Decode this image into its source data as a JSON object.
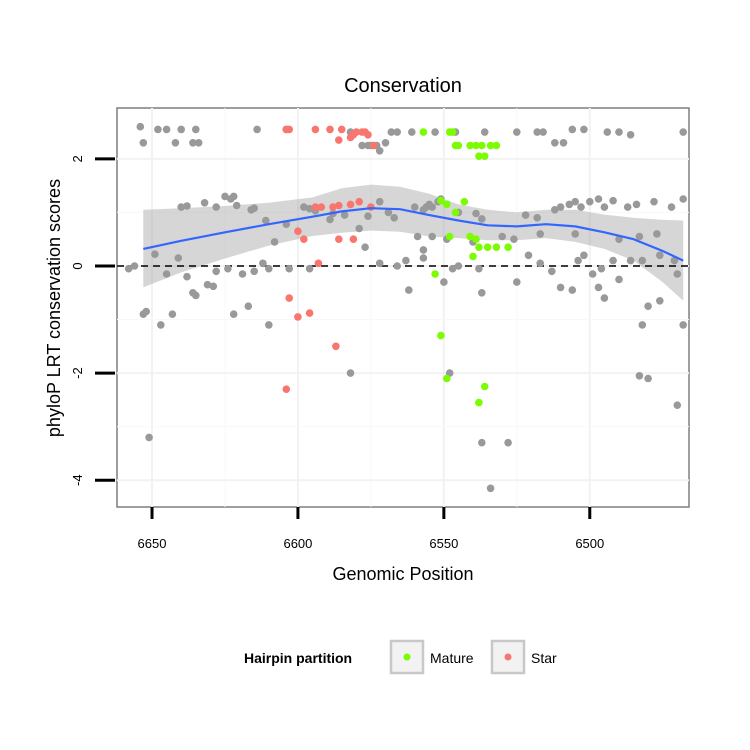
{
  "chart_data": {
    "type": "scatter",
    "title": "Conservation",
    "xlabel": "Genomic Position",
    "ylabel": "phyloP LRT conservation scores",
    "x_reversed": true,
    "xlim": [
      6662,
      6466
    ],
    "ylim": [
      -4.5,
      2.95
    ],
    "x_ticks": [
      6650,
      6600,
      6550,
      6500
    ],
    "y_ticks": [
      -4,
      -2,
      0,
      2
    ],
    "reference_line": {
      "y": 0,
      "style": "dashed"
    },
    "smooth": {
      "method": "loess",
      "color": "#3366FF",
      "x": [
        6653,
        6640,
        6625,
        6610,
        6595,
        6585,
        6575,
        6565,
        6555,
        6545,
        6535,
        6525,
        6515,
        6505,
        6495,
        6485,
        6475,
        6468
      ],
      "y": [
        0.32,
        0.47,
        0.63,
        0.78,
        0.92,
        1.02,
        1.08,
        1.06,
        0.95,
        0.85,
        0.76,
        0.74,
        0.78,
        0.74,
        0.63,
        0.5,
        0.28,
        0.1
      ],
      "upper": [
        1.05,
        1.08,
        1.12,
        1.18,
        1.28,
        1.45,
        1.52,
        1.48,
        1.35,
        1.15,
        1.05,
        1.0,
        1.05,
        1.05,
        0.96,
        0.9,
        0.86,
        0.85
      ],
      "lower": [
        -0.4,
        -0.12,
        0.14,
        0.38,
        0.56,
        0.62,
        0.66,
        0.64,
        0.55,
        0.52,
        0.48,
        0.48,
        0.52,
        0.45,
        0.32,
        0.1,
        -0.3,
        -0.65
      ]
    },
    "legend": {
      "title": "Hairpin partition",
      "position": "bottom",
      "entries": [
        {
          "label": "Mature",
          "color": "#7CFC00"
        },
        {
          "label": "Star",
          "color": "#F8766D"
        }
      ]
    },
    "series": [
      {
        "name": "Other",
        "color": "#999999",
        "points": [
          [
            6654,
            2.6
          ],
          [
            6653,
            2.3
          ],
          [
            6648,
            2.55
          ],
          [
            6645,
            2.55
          ],
          [
            6642,
            2.3
          ],
          [
            6640,
            2.55
          ],
          [
            6636,
            2.3
          ],
          [
            6635,
            2.55
          ],
          [
            6634,
            2.3
          ],
          [
            6614,
            2.55
          ],
          [
            6604,
            2.55
          ],
          [
            6582,
            2.5
          ],
          [
            6578,
            2.25
          ],
          [
            6576,
            2.25
          ],
          [
            6575,
            2.25
          ],
          [
            6573,
            2.25
          ],
          [
            6572,
            2.15
          ],
          [
            6570,
            2.3
          ],
          [
            6568,
            2.5
          ],
          [
            6566,
            2.5
          ],
          [
            6561,
            2.5
          ],
          [
            6553,
            2.5
          ],
          [
            6546,
            2.5
          ],
          [
            6536,
            2.5
          ],
          [
            6525,
            2.5
          ],
          [
            6518,
            2.5
          ],
          [
            6516,
            2.5
          ],
          [
            6512,
            2.3
          ],
          [
            6509,
            2.3
          ],
          [
            6506,
            2.55
          ],
          [
            6502,
            2.55
          ],
          [
            6494,
            2.5
          ],
          [
            6490,
            2.5
          ],
          [
            6486,
            2.45
          ],
          [
            6468,
            2.5
          ],
          [
            6640,
            1.1
          ],
          [
            6638,
            1.12
          ],
          [
            6632,
            1.18
          ],
          [
            6628,
            1.1
          ],
          [
            6625,
            1.3
          ],
          [
            6623,
            1.25
          ],
          [
            6622,
            1.3
          ],
          [
            6621,
            1.13
          ],
          [
            6616,
            1.05
          ],
          [
            6615,
            1.08
          ],
          [
            6598,
            1.1
          ],
          [
            6596,
            1.07
          ],
          [
            6594,
            1.03
          ],
          [
            6588,
            0.98
          ],
          [
            6584,
            0.95
          ],
          [
            6576,
            0.93
          ],
          [
            6572,
            1.2
          ],
          [
            6569,
            1.0
          ],
          [
            6567,
            0.9
          ],
          [
            6560,
            1.1
          ],
          [
            6557,
            1.05
          ],
          [
            6556,
            1.1
          ],
          [
            6555,
            1.15
          ],
          [
            6554,
            1.1
          ],
          [
            6552,
            1.2
          ],
          [
            6551,
            1.25
          ],
          [
            6545,
            1.0
          ],
          [
            6539,
            0.98
          ],
          [
            6537,
            0.88
          ],
          [
            6522,
            0.95
          ],
          [
            6518,
            0.9
          ],
          [
            6512,
            1.05
          ],
          [
            6510,
            1.1
          ],
          [
            6507,
            1.15
          ],
          [
            6505,
            1.2
          ],
          [
            6503,
            1.1
          ],
          [
            6500,
            1.2
          ],
          [
            6497,
            1.25
          ],
          [
            6495,
            1.1
          ],
          [
            6492,
            1.22
          ],
          [
            6487,
            1.1
          ],
          [
            6484,
            1.15
          ],
          [
            6478,
            1.2
          ],
          [
            6472,
            1.1
          ],
          [
            6468,
            1.25
          ],
          [
            6611,
            0.85
          ],
          [
            6604,
            0.78
          ],
          [
            6589,
            0.87
          ],
          [
            6579,
            0.7
          ],
          [
            6559,
            0.55
          ],
          [
            6557,
            0.3
          ],
          [
            6554,
            0.55
          ],
          [
            6549,
            0.5
          ],
          [
            6540,
            0.45
          ],
          [
            6530,
            0.55
          ],
          [
            6526,
            0.5
          ],
          [
            6517,
            0.6
          ],
          [
            6505,
            0.6
          ],
          [
            6490,
            0.5
          ],
          [
            6483,
            0.55
          ],
          [
            6477,
            0.6
          ],
          [
            6658,
            -0.05
          ],
          [
            6656,
            0.0
          ],
          [
            6649,
            0.22
          ],
          [
            6645,
            -0.15
          ],
          [
            6641,
            0.15
          ],
          [
            6638,
            -0.2
          ],
          [
            6636,
            -0.5
          ],
          [
            6635,
            -0.55
          ],
          [
            6631,
            -0.35
          ],
          [
            6629,
            -0.38
          ],
          [
            6628,
            -0.1
          ],
          [
            6624,
            -0.05
          ],
          [
            6622,
            -0.9
          ],
          [
            6619,
            -0.15
          ],
          [
            6615,
            -0.1
          ],
          [
            6612,
            0.05
          ],
          [
            6610,
            -0.05
          ],
          [
            6608,
            0.45
          ],
          [
            6603,
            -0.05
          ],
          [
            6596,
            -0.05
          ],
          [
            6577,
            0.35
          ],
          [
            6572,
            0.05
          ],
          [
            6566,
            0.0
          ],
          [
            6563,
            0.1
          ],
          [
            6562,
            -0.45
          ],
          [
            6557,
            0.15
          ],
          [
            6550,
            -0.3
          ],
          [
            6547,
            -0.05
          ],
          [
            6545,
            0.0
          ],
          [
            6538,
            -0.05
          ],
          [
            6537,
            -0.5
          ],
          [
            6525,
            -0.3
          ],
          [
            6521,
            0.2
          ],
          [
            6517,
            0.05
          ],
          [
            6513,
            -0.1
          ],
          [
            6510,
            -0.4
          ],
          [
            6506,
            -0.45
          ],
          [
            6504,
            0.1
          ],
          [
            6502,
            0.2
          ],
          [
            6499,
            -0.15
          ],
          [
            6496,
            -0.05
          ],
          [
            6492,
            0.1
          ],
          [
            6490,
            -0.25
          ],
          [
            6486,
            0.1
          ],
          [
            6482,
            0.1
          ],
          [
            6476,
            0.2
          ],
          [
            6471,
            0.1
          ],
          [
            6470,
            -0.15
          ],
          [
            6653,
            -0.9
          ],
          [
            6652,
            -0.85
          ],
          [
            6647,
            -1.1
          ],
          [
            6643,
            -0.9
          ],
          [
            6610,
            -1.1
          ],
          [
            6617,
            -0.75
          ],
          [
            6497,
            -0.4
          ],
          [
            6495,
            -0.6
          ],
          [
            6482,
            -1.1
          ],
          [
            6480,
            -0.75
          ],
          [
            6476,
            -0.65
          ],
          [
            6468,
            -1.1
          ],
          [
            6651,
            -3.2
          ],
          [
            6548,
            -2.0
          ],
          [
            6534,
            -4.15
          ],
          [
            6537,
            -3.3
          ],
          [
            6528,
            -3.3
          ],
          [
            6582,
            -2.0
          ],
          [
            6483,
            -2.05
          ],
          [
            6480,
            -2.1
          ],
          [
            6470,
            -2.6
          ]
        ]
      },
      {
        "name": "Mature",
        "color": "#7CFC00",
        "points": [
          [
            6557,
            2.5
          ],
          [
            6548,
            2.5
          ],
          [
            6547,
            2.5
          ],
          [
            6546,
            2.25
          ],
          [
            6545,
            2.25
          ],
          [
            6541,
            2.25
          ],
          [
            6539,
            2.25
          ],
          [
            6538,
            2.05
          ],
          [
            6537,
            2.25
          ],
          [
            6536,
            2.05
          ],
          [
            6534,
            2.25
          ],
          [
            6532,
            2.25
          ],
          [
            6551,
            1.22
          ],
          [
            6549,
            1.15
          ],
          [
            6546,
            1.0
          ],
          [
            6543,
            1.2
          ],
          [
            6541,
            0.55
          ],
          [
            6538,
            0.35
          ],
          [
            6535,
            0.35
          ],
          [
            6532,
            0.35
          ],
          [
            6528,
            0.35
          ],
          [
            6548,
            0.55
          ],
          [
            6539,
            0.5
          ],
          [
            6540,
            0.18
          ],
          [
            6553,
            -0.15
          ],
          [
            6551,
            -1.3
          ],
          [
            6549,
            -2.1
          ],
          [
            6538,
            -2.55
          ],
          [
            6536,
            -2.25
          ]
        ]
      },
      {
        "name": "Star",
        "color": "#F8766D",
        "points": [
          [
            6604,
            2.55
          ],
          [
            6603,
            2.55
          ],
          [
            6594,
            2.55
          ],
          [
            6589,
            2.55
          ],
          [
            6586,
            2.35
          ],
          [
            6585,
            2.55
          ],
          [
            6582,
            2.4
          ],
          [
            6581,
            2.45
          ],
          [
            6580,
            2.5
          ],
          [
            6578,
            2.5
          ],
          [
            6577,
            2.5
          ],
          [
            6576,
            2.45
          ],
          [
            6574,
            2.25
          ],
          [
            6594,
            1.1
          ],
          [
            6592,
            1.1
          ],
          [
            6588,
            1.1
          ],
          [
            6586,
            1.13
          ],
          [
            6582,
            1.15
          ],
          [
            6579,
            1.2
          ],
          [
            6575,
            1.1
          ],
          [
            6600,
            0.65
          ],
          [
            6598,
            0.5
          ],
          [
            6586,
            0.5
          ],
          [
            6581,
            0.5
          ],
          [
            6593,
            0.05
          ],
          [
            6603,
            -0.6
          ],
          [
            6600,
            -0.95
          ],
          [
            6596,
            -0.88
          ],
          [
            6587,
            -1.5
          ],
          [
            6604,
            -2.3
          ]
        ]
      }
    ]
  }
}
